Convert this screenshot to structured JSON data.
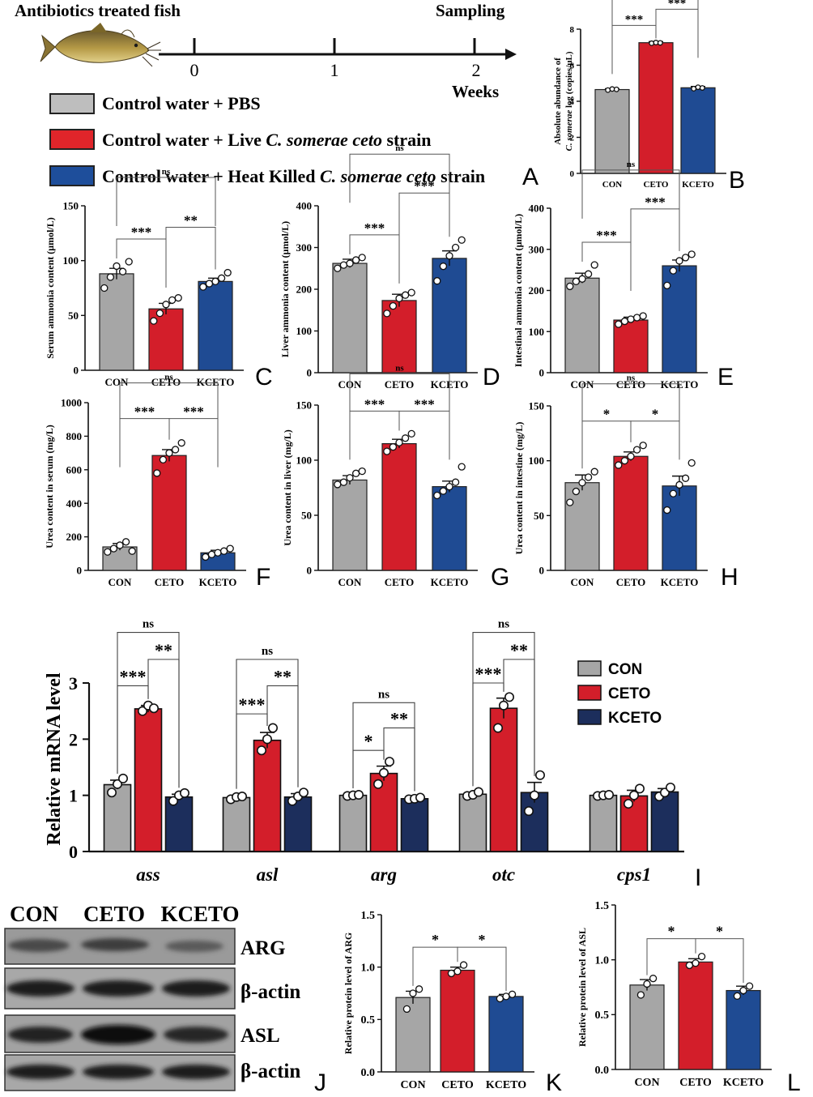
{
  "header": {
    "title": "Antibiotics treated fish",
    "sampling": "Sampling",
    "weeks_label": "Weeks",
    "timeline_ticks": [
      "0",
      "1",
      "2"
    ]
  },
  "legend_top": [
    {
      "text": "Control water + PBS",
      "italic": "",
      "suffix": "",
      "color": "#BEBEBE"
    },
    {
      "text": "Control water + Live ",
      "italic": "C. somerae ceto",
      "suffix": " strain",
      "color": "#E0252A"
    },
    {
      "text": "Control water + Heat Killed ",
      "italic": "C. somerae ceto",
      "suffix": " strain",
      "color": "#1E4E9B"
    }
  ],
  "colors": {
    "CON": "#A6A6A6",
    "CETO": "#D31E2A",
    "KCETO": "#1F4B93",
    "KCETO_dark": "#1C2E5C"
  },
  "chart_data": [
    {
      "id": "B",
      "type": "bar",
      "panel_letter": "B",
      "categories": [
        "CON",
        "CETO",
        "KCETO"
      ],
      "values": [
        4.65,
        7.25,
        4.75
      ],
      "errors": [
        0.05,
        0.06,
        0.07
      ],
      "points": [
        [
          4.62,
          4.68,
          4.66
        ],
        [
          7.22,
          7.26,
          7.24
        ],
        [
          4.7,
          4.78,
          4.74
        ]
      ],
      "ylim": [
        0,
        8
      ],
      "yticks": [
        0,
        2,
        4,
        6,
        8
      ],
      "ylabel_lines": [
        "Absolute abundance of",
        "C. somerae  log (copies/μL)"
      ],
      "sig": [
        {
          "from": 0,
          "to": 1,
          "label": "***"
        },
        {
          "from": 1,
          "to": 2,
          "label": "***"
        },
        {
          "from": 0,
          "to": 2,
          "label": "ns"
        }
      ]
    },
    {
      "id": "C",
      "type": "bar",
      "panel_letter": "C",
      "categories": [
        "CON",
        "CETO",
        "KCETO"
      ],
      "values": [
        88,
        56,
        81
      ],
      "errors": [
        5,
        5,
        3
      ],
      "points": [
        [
          75,
          85,
          95,
          90,
          99
        ],
        [
          45,
          52,
          60,
          64,
          66
        ],
        [
          76,
          79,
          81,
          84,
          89
        ]
      ],
      "ylim": [
        0,
        150
      ],
      "yticks": [
        0,
        50,
        100,
        150
      ],
      "ylabel_lines": [
        "Serum ammonia content (μmol/L)"
      ],
      "sig": [
        {
          "from": 0,
          "to": 1,
          "label": "***"
        },
        {
          "from": 1,
          "to": 2,
          "label": "**"
        },
        {
          "from": 0,
          "to": 2,
          "label": "ns"
        }
      ]
    },
    {
      "id": "D",
      "type": "bar",
      "panel_letter": "D",
      "categories": [
        "CON",
        "CETO",
        "KCETO"
      ],
      "values": [
        262,
        173,
        274
      ],
      "errors": [
        10,
        15,
        18
      ],
      "points": [
        [
          250,
          258,
          262,
          270,
          276
        ],
        [
          142,
          160,
          178,
          186,
          192
        ],
        [
          220,
          255,
          280,
          300,
          318
        ]
      ],
      "ylim": [
        0,
        400
      ],
      "yticks": [
        0,
        100,
        200,
        300,
        400
      ],
      "ylabel_lines": [
        "Liver ammonia content (μmol/L)"
      ],
      "sig": [
        {
          "from": 0,
          "to": 1,
          "label": "***"
        },
        {
          "from": 1,
          "to": 2,
          "label": "***"
        },
        {
          "from": 0,
          "to": 2,
          "label": "ns"
        }
      ]
    },
    {
      "id": "E",
      "type": "bar",
      "panel_letter": "E",
      "categories": [
        "CON",
        "CETO",
        "KCETO"
      ],
      "values": [
        230,
        128,
        260
      ],
      "errors": [
        12,
        7,
        14
      ],
      "points": [
        [
          210,
          222,
          228,
          240,
          262
        ],
        [
          118,
          125,
          130,
          134,
          138
        ],
        [
          212,
          248,
          272,
          280,
          288
        ]
      ],
      "ylim": [
        0,
        400
      ],
      "yticks": [
        0,
        100,
        200,
        300,
        400
      ],
      "ylabel_lines": [
        "Intestinal ammonia content (μmol/L)"
      ],
      "sig": [
        {
          "from": 0,
          "to": 1,
          "label": "***"
        },
        {
          "from": 1,
          "to": 2,
          "label": "***"
        },
        {
          "from": 0,
          "to": 2,
          "label": "ns"
        }
      ]
    },
    {
      "id": "F",
      "type": "bar",
      "panel_letter": "F",
      "categories": [
        "CON",
        "CETO",
        "KCETO"
      ],
      "values": [
        140,
        685,
        105
      ],
      "errors": [
        20,
        35,
        15
      ],
      "points": [
        [
          110,
          130,
          150,
          170,
          115
        ],
        [
          580,
          660,
          700,
          720,
          760
        ],
        [
          80,
          95,
          105,
          115,
          130
        ]
      ],
      "ylim": [
        0,
        1000
      ],
      "yticks": [
        0,
        200,
        400,
        600,
        800,
        1000
      ],
      "ylabel_lines": [
        "Urea content in serum (mg/L)"
      ],
      "sig": [
        {
          "from": 0,
          "to": 1,
          "label": "***"
        },
        {
          "from": 1,
          "to": 2,
          "label": "***"
        },
        {
          "from": 0,
          "to": 2,
          "label": "ns"
        }
      ]
    },
    {
      "id": "G",
      "type": "bar",
      "panel_letter": "G",
      "categories": [
        "CON",
        "CETO",
        "KCETO"
      ],
      "values": [
        82,
        115,
        76
      ],
      "errors": [
        4,
        4,
        5
      ],
      "points": [
        [
          78,
          80,
          84,
          88,
          90
        ],
        [
          108,
          112,
          116,
          120,
          124
        ],
        [
          68,
          72,
          76,
          80,
          94
        ]
      ],
      "ylim": [
        0,
        150
      ],
      "yticks": [
        0,
        50,
        100,
        150
      ],
      "ylabel_lines": [
        "Urea content in liver (mg/L)"
      ],
      "sig": [
        {
          "from": 0,
          "to": 1,
          "label": "***"
        },
        {
          "from": 1,
          "to": 2,
          "label": "***"
        },
        {
          "from": 0,
          "to": 2,
          "label": "ns"
        }
      ]
    },
    {
      "id": "H",
      "type": "bar",
      "panel_letter": "H",
      "categories": [
        "CON",
        "CETO",
        "KCETO"
      ],
      "values": [
        80,
        104,
        77
      ],
      "errors": [
        7,
        4,
        9
      ],
      "points": [
        [
          62,
          72,
          80,
          85,
          90
        ],
        [
          96,
          100,
          104,
          110,
          114
        ],
        [
          55,
          70,
          78,
          84,
          98
        ]
      ],
      "ylim": [
        0,
        150
      ],
      "yticks": [
        0,
        50,
        100,
        150
      ],
      "ylabel_lines": [
        "Urea content in intestine (mg/L)"
      ],
      "sig": [
        {
          "from": 0,
          "to": 1,
          "label": "*"
        },
        {
          "from": 1,
          "to": 2,
          "label": "*"
        },
        {
          "from": 0,
          "to": 2,
          "label": "ns"
        }
      ]
    },
    {
      "id": "I",
      "type": "grouped-bar",
      "panel_letter": "I",
      "categories": [
        "ass",
        "asl",
        "arg",
        "otc",
        "cps1"
      ],
      "series": [
        {
          "name": "CON",
          "values": [
            1.19,
            0.96,
            1.0,
            1.02,
            1.0
          ],
          "errors": [
            0.08,
            0.04,
            0.01,
            0.03,
            0.01
          ],
          "points": [
            [
              1.05,
              1.2,
              1.3
            ],
            [
              0.93,
              0.97,
              0.98
            ],
            [
              0.99,
              1.0,
              1.01
            ],
            [
              0.99,
              1.01,
              1.06
            ],
            [
              0.99,
              1.0,
              1.01
            ]
          ]
        },
        {
          "name": "CETO",
          "values": [
            2.54,
            1.98,
            1.39,
            2.55,
            0.99
          ],
          "errors": [
            0.06,
            0.14,
            0.13,
            0.18,
            0.1
          ],
          "points": [
            [
              2.5,
              2.6,
              2.55
            ],
            [
              1.8,
              2.0,
              2.2
            ],
            [
              1.2,
              1.4,
              1.6
            ],
            [
              2.2,
              2.6,
              2.75
            ],
            [
              0.85,
              1.0,
              1.12
            ]
          ]
        },
        {
          "name": "KCETO",
          "values": [
            0.97,
            0.97,
            0.94,
            1.05,
            1.06
          ],
          "errors": [
            0.05,
            0.06,
            0.02,
            0.18,
            0.06
          ],
          "points": [
            [
              0.9,
              1.0,
              1.04
            ],
            [
              0.9,
              0.98,
              1.05
            ],
            [
              0.93,
              0.94,
              0.96
            ],
            [
              0.72,
              1.0,
              1.36
            ],
            [
              0.98,
              1.05,
              1.14
            ]
          ]
        }
      ],
      "ylim": [
        0,
        3
      ],
      "yticks": [
        0,
        1,
        2,
        3
      ],
      "ylabel": "Relative mRNA level",
      "sig": [
        {
          "group": 0,
          "items": [
            {
              "label": "***",
              "from": 0,
              "to": 1,
              "y": 2.95
            },
            {
              "label": "**",
              "from": 1,
              "to": 2,
              "y": 3.42
            },
            {
              "label": "ns",
              "from": 0,
              "to": 2,
              "y": 3.9
            }
          ]
        },
        {
          "group": 1,
          "items": [
            {
              "label": "***",
              "from": 0,
              "to": 1,
              "y": 2.45
            },
            {
              "label": "**",
              "from": 1,
              "to": 2,
              "y": 2.95
            },
            {
              "label": "ns",
              "from": 0,
              "to": 2,
              "y": 3.42
            }
          ]
        },
        {
          "group": 2,
          "items": [
            {
              "label": "*",
              "from": 0,
              "to": 1,
              "y": 1.8
            },
            {
              "label": "**",
              "from": 1,
              "to": 2,
              "y": 2.2
            },
            {
              "label": "ns",
              "from": 0,
              "to": 2,
              "y": 2.65
            }
          ]
        },
        {
          "group": 3,
          "items": [
            {
              "label": "***",
              "from": 0,
              "to": 1,
              "y": 3.0
            },
            {
              "label": "**",
              "from": 1,
              "to": 2,
              "y": 3.42
            },
            {
              "label": "ns",
              "from": 0,
              "to": 2,
              "y": 3.9
            }
          ]
        }
      ]
    },
    {
      "id": "K",
      "type": "bar",
      "panel_letter": "K",
      "categories": [
        "CON",
        "CETO",
        "KCETO"
      ],
      "values": [
        0.71,
        0.97,
        0.72
      ],
      "errors": [
        0.06,
        0.03,
        0.02
      ],
      "points": [
        [
          0.6,
          0.75,
          0.79
        ],
        [
          0.94,
          0.96,
          1.02
        ],
        [
          0.7,
          0.72,
          0.74
        ]
      ],
      "ylim": [
        0,
        1.5
      ],
      "yticks": [
        0.0,
        0.5,
        1.0,
        1.5
      ],
      "ylabel_lines": [
        "Relative protein level of ARG"
      ],
      "sig": [
        {
          "from": 0,
          "to": 1,
          "label": "*"
        },
        {
          "from": 1,
          "to": 2,
          "label": "*"
        }
      ]
    },
    {
      "id": "L",
      "type": "bar",
      "panel_letter": "L",
      "categories": [
        "CON",
        "CETO",
        "KCETO"
      ],
      "values": [
        0.77,
        0.98,
        0.72
      ],
      "errors": [
        0.05,
        0.03,
        0.04
      ],
      "points": [
        [
          0.68,
          0.78,
          0.83
        ],
        [
          0.95,
          0.97,
          1.03
        ],
        [
          0.67,
          0.72,
          0.76
        ]
      ],
      "ylim": [
        0,
        1.5
      ],
      "yticks": [
        0.0,
        0.5,
        1.0,
        1.5
      ],
      "ylabel_lines": [
        "Relative protein level of ASL"
      ],
      "sig": [
        {
          "from": 0,
          "to": 1,
          "label": "*"
        },
        {
          "from": 1,
          "to": 2,
          "label": "*"
        }
      ]
    }
  ],
  "panel_A_letter": "A",
  "panel_J_letter": "J",
  "western": {
    "lanes": [
      "CON",
      "CETO",
      "KCETO"
    ],
    "rows": [
      "ARG",
      "β-actin",
      "ASL",
      "β-actin"
    ]
  }
}
